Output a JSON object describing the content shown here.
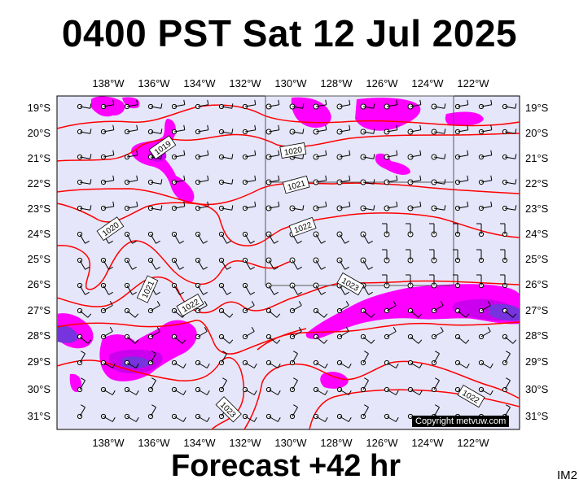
{
  "title": "0400 PST Sat 12 Jul 2025",
  "footer": "Forecast +42 hr",
  "tag": "IM2",
  "copyright": "Copyright metvuw.com",
  "colors": {
    "background": "#e6e6fa",
    "isobar": "#ff0000",
    "rain_light": "#ff00ff",
    "rain_medium": "#cc00ee",
    "rain_heavy": "#7733dd",
    "grid": "#000000"
  },
  "map": {
    "lon_labels": [
      "138°W",
      "136°W",
      "134°W",
      "132°W",
      "130°W",
      "128°W",
      "126°W",
      "124°W",
      "122°W"
    ],
    "lat_labels": [
      "19°S",
      "20°S",
      "21°S",
      "22°S",
      "23°S",
      "24°S",
      "25°S",
      "26°S",
      "27°S",
      "28°S",
      "29°S",
      "30°S",
      "31°S"
    ],
    "isobar_labels": [
      "1019",
      "1020",
      "1020",
      "1021",
      "1021",
      "1022",
      "1022",
      "1023",
      "1023",
      "1022",
      "1023"
    ]
  }
}
